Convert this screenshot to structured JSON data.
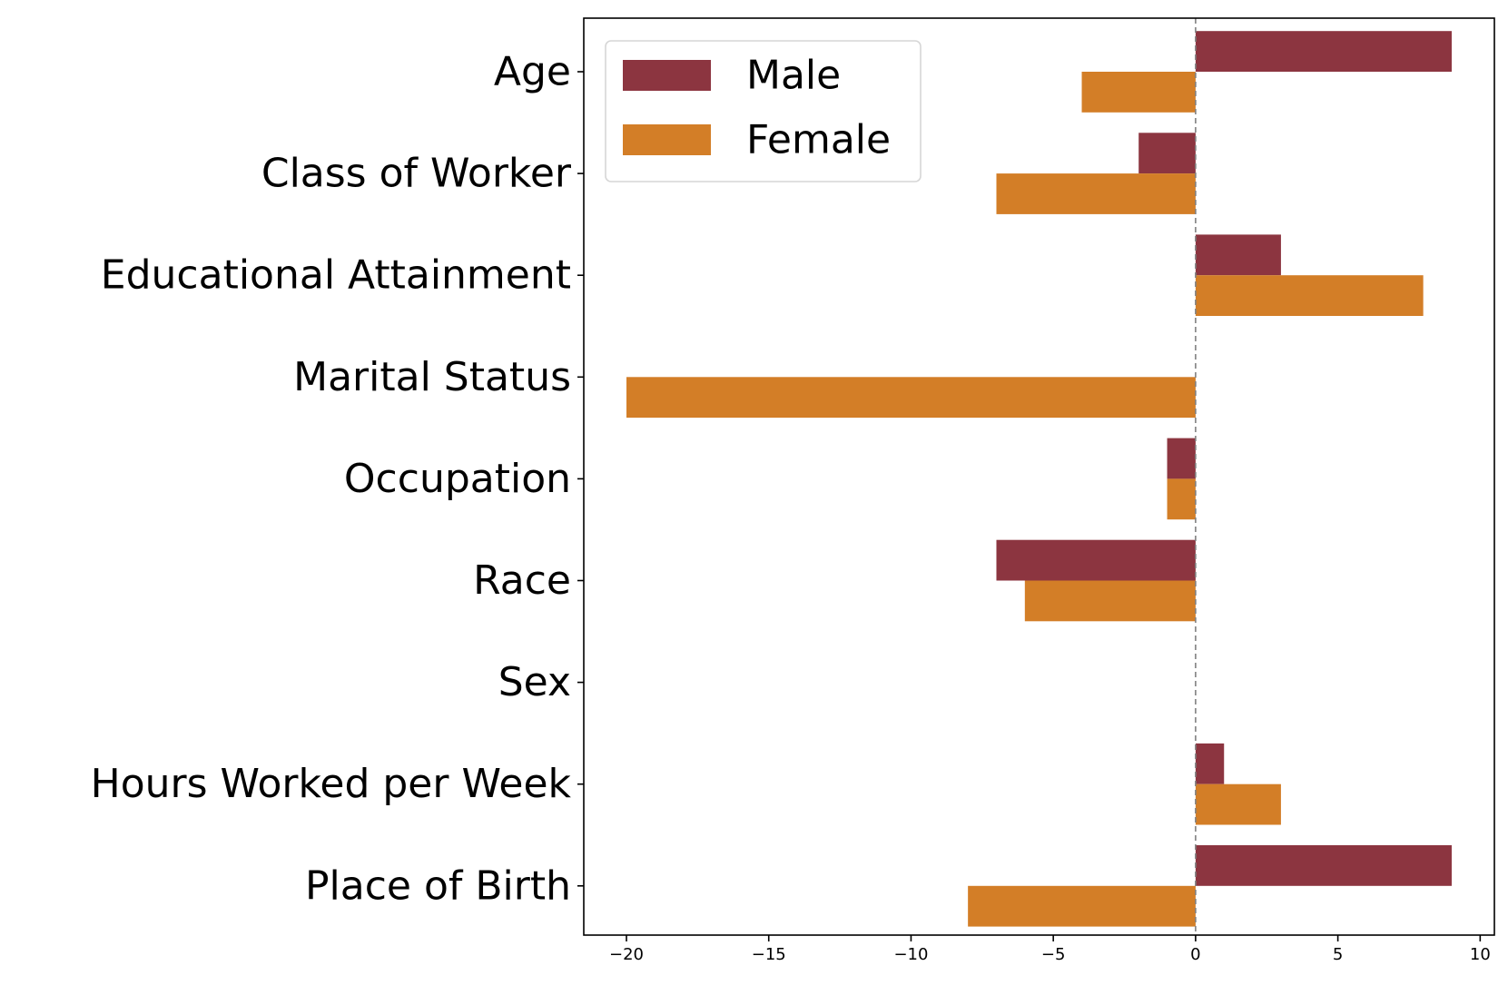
{
  "chart_data": {
    "type": "bar",
    "orientation": "horizontal",
    "title": "",
    "xlabel": "",
    "ylabel": "",
    "categories": [
      "Age",
      "Class of Worker",
      "Educational Attainment",
      "Marital Status",
      "Occupation",
      "Race",
      "Sex",
      "Hours Worked per Week",
      "Place of Birth"
    ],
    "series": [
      {
        "name": "Male",
        "color": "#8c3540",
        "values": [
          9,
          -2,
          3,
          0,
          -1,
          -7,
          0,
          1,
          9
        ]
      },
      {
        "name": "Female",
        "color": "#d37e27",
        "values": [
          -4,
          -7,
          8,
          -20,
          -1,
          -6,
          0,
          3,
          -8
        ]
      }
    ],
    "xlim": [
      -21.5,
      10.5
    ],
    "xticks": [
      -20,
      -15,
      -10,
      -5,
      0,
      5,
      10
    ],
    "xtick_labels": [
      "−20",
      "−15",
      "−10",
      "−5",
      "0",
      "5",
      "10"
    ],
    "zero_line": "dashed",
    "grid": false,
    "legend_position": "top-left"
  }
}
